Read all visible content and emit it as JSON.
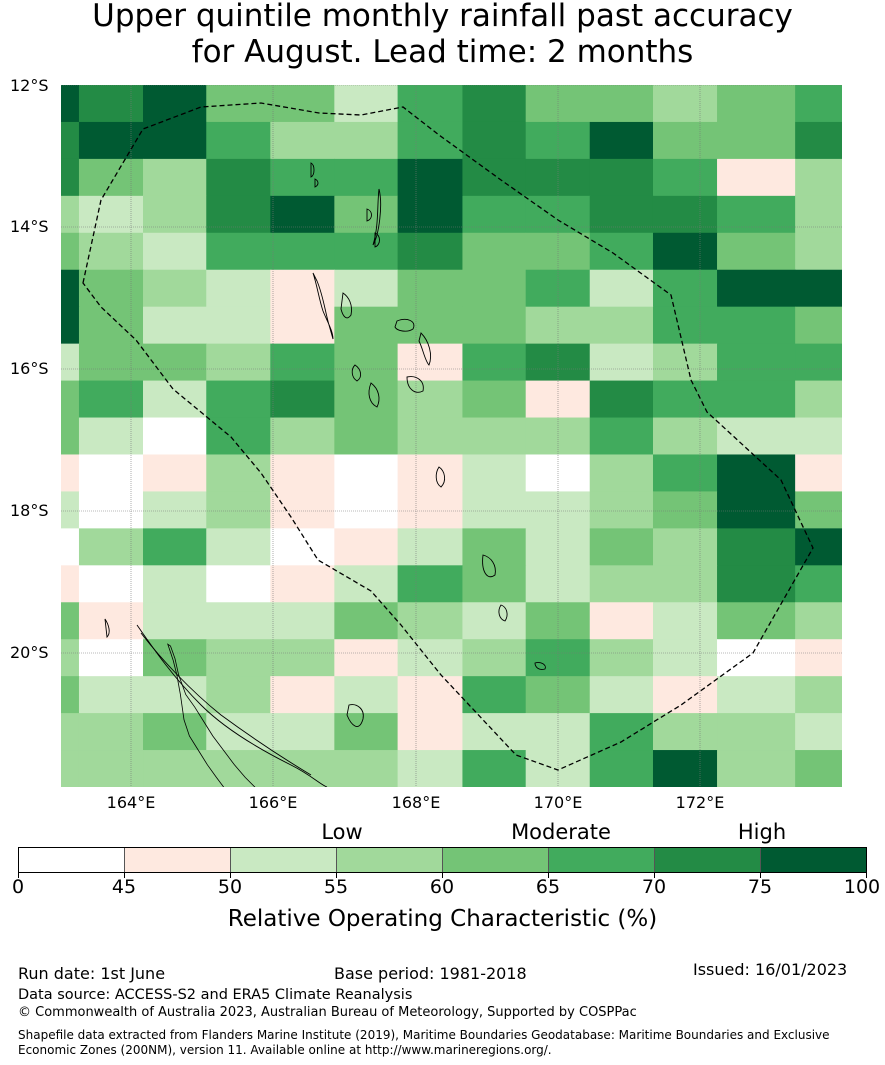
{
  "title_line1": "Upper quintile monthly rainfall past accuracy",
  "title_line2": "for August. Lead time: 2 months",
  "lat_labels": [
    "12°S",
    "14°S",
    "16°S",
    "18°S",
    "20°S"
  ],
  "lon_labels": [
    "164°E",
    "166°E",
    "168°E",
    "170°E",
    "172°E"
  ],
  "colormap": {
    "classes": [
      "#ffffff",
      "#fee9e0",
      "#c9e9c2",
      "#a1d99b",
      "#74c476",
      "#41ab5d",
      "#238b45",
      "#005a32"
    ],
    "grid_cols": [
      0,
      0.023,
      0.105,
      0.186,
      0.268,
      0.35,
      0.431,
      0.514,
      0.595,
      0.677,
      0.758,
      0.84,
      0.94,
      1.0
    ],
    "grid": [
      [
        7,
        6,
        7,
        4,
        4,
        2,
        5,
        6,
        4,
        4,
        3,
        4,
        5
      ],
      [
        6,
        7,
        7,
        5,
        3,
        3,
        5,
        6,
        5,
        7,
        4,
        4,
        6
      ],
      [
        6,
        4,
        3,
        6,
        5,
        5,
        7,
        6,
        6,
        6,
        5,
        1,
        3
      ],
      [
        3,
        2,
        3,
        6,
        7,
        4,
        7,
        5,
        5,
        6,
        6,
        5,
        3
      ],
      [
        4,
        3,
        2,
        5,
        5,
        5,
        6,
        4,
        4,
        5,
        7,
        4,
        3
      ],
      [
        7,
        4,
        3,
        2,
        1,
        2,
        4,
        4,
        5,
        2,
        5,
        7,
        7
      ],
      [
        7,
        4,
        2,
        2,
        1,
        4,
        4,
        4,
        3,
        3,
        5,
        5,
        4
      ],
      [
        2,
        4,
        4,
        3,
        5,
        4,
        1,
        5,
        6,
        2,
        3,
        5,
        5
      ],
      [
        4,
        5,
        2,
        5,
        6,
        4,
        3,
        4,
        1,
        6,
        5,
        5,
        3
      ],
      [
        4,
        2,
        0,
        5,
        3,
        4,
        3,
        3,
        3,
        5,
        3,
        2,
        2
      ],
      [
        1,
        0,
        1,
        3,
        1,
        0,
        1,
        2,
        0,
        3,
        5,
        7,
        1
      ],
      [
        2,
        0,
        2,
        3,
        1,
        0,
        1,
        2,
        2,
        3,
        4,
        7,
        4
      ],
      [
        0,
        3,
        5,
        2,
        0,
        1,
        2,
        4,
        2,
        4,
        3,
        6,
        7
      ],
      [
        1,
        0,
        2,
        0,
        1,
        2,
        5,
        4,
        2,
        3,
        3,
        6,
        5
      ],
      [
        4,
        1,
        2,
        2,
        2,
        4,
        3,
        2,
        4,
        1,
        2,
        4,
        3
      ],
      [
        3,
        0,
        4,
        3,
        3,
        1,
        2,
        3,
        5,
        3,
        2,
        0,
        1
      ],
      [
        4,
        2,
        2,
        3,
        1,
        2,
        1,
        5,
        4,
        2,
        1,
        2,
        3
      ],
      [
        3,
        3,
        4,
        2,
        2,
        4,
        1,
        2,
        2,
        5,
        3,
        3,
        2
      ],
      [
        3,
        3,
        3,
        3,
        3,
        3,
        2,
        5,
        2,
        5,
        7,
        3,
        4
      ]
    ]
  },
  "category_labels": [
    "Low",
    "Moderate",
    "High"
  ],
  "colorbar_ticks": [
    "0",
    "45",
    "50",
    "55",
    "60",
    "65",
    "70",
    "75",
    "100"
  ],
  "colorbar_label": "Relative Operating Characteristic (%)",
  "run_date": "Run date: 1st June",
  "base_period": "Base period: 1981-2018",
  "issued": "Issued: 16/01/2023",
  "data_source": "Data source: ACCESS-S2 and ERA5 Climate Reanalysis",
  "copyright": "© Commonwealth of Australia 2023, Australian Bureau of Meteorology, Supported by COSPPac",
  "shapefile_note": "Shapefile data extracted from Flanders Marine Institute (2019), Maritime Boundaries Geodatabase: Maritime Boundaries and Exclusive Economic Zones (200NM), version 11. Available online at http://www.marineregions.org/."
}
